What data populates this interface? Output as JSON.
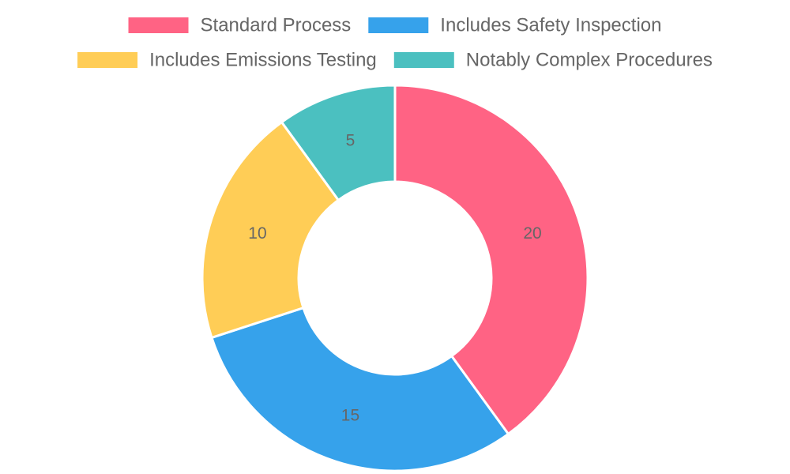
{
  "chart_data": {
    "type": "pie",
    "variant": "doughnut",
    "categories": [
      "Standard Process",
      "Includes Safety Inspection",
      "Includes Emissions Testing",
      "Notably Complex Procedures"
    ],
    "values": [
      20,
      15,
      10,
      5
    ],
    "colors": [
      "#ff6384",
      "#36a2eb",
      "#ffcd56",
      "#4bc0c0"
    ],
    "legend_position": "top",
    "data_labels": true
  }
}
